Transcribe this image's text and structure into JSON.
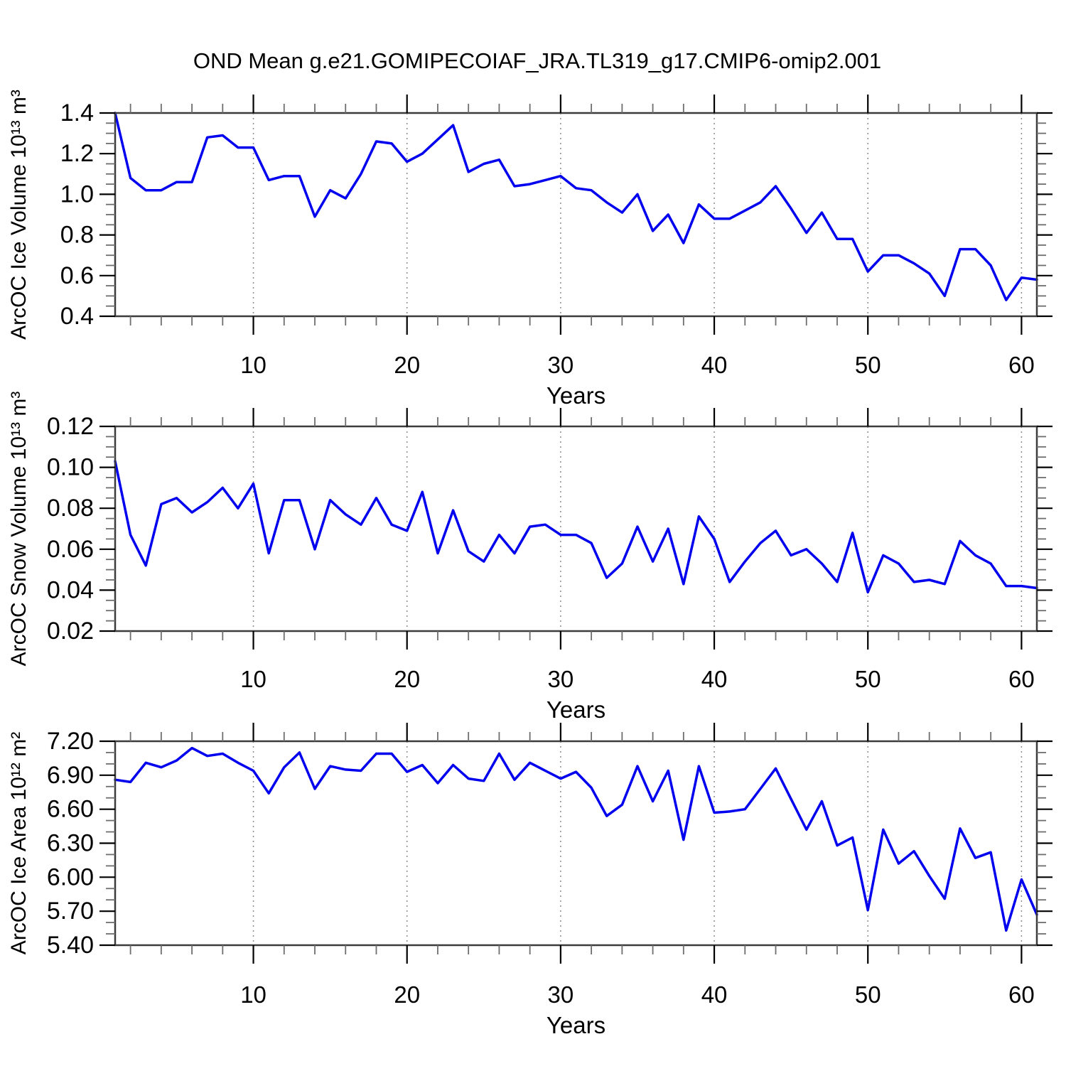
{
  "title": "OND Mean g.e21.GOMIPECOIAF_JRA.TL319_g17.CMIP6-omip2.001",
  "chart_style": {
    "line_color": "#0000ee",
    "frame_color": "#3c3c3c",
    "tick_color": "#000000",
    "minor_tick_color": "#6e6e6e",
    "grid_color": "#8c8c8c",
    "text_color": "#000000",
    "background": "#ffffff"
  },
  "chart_data": [
    {
      "type": "line",
      "title": "",
      "ylabel": "ArcOC Ice Volume 10¹³ m³",
      "xlabel": "Years",
      "x_start": 1,
      "xlim": [
        1,
        61
      ],
      "x_major_ticks": [
        10,
        20,
        30,
        40,
        50,
        60
      ],
      "xtick_labels": [
        "10",
        "20",
        "30",
        "40",
        "50",
        "60"
      ],
      "x_minor_step": 2,
      "ylim": [
        0.4,
        1.4
      ],
      "ytick_values": [
        0.4,
        0.6,
        0.8,
        1.0,
        1.2,
        1.4
      ],
      "ytick_labels": [
        "0.4",
        "0.6",
        "0.8",
        "1.0",
        "1.2",
        "1.4"
      ],
      "y_minor_step": 0.05,
      "grid": "dashed-vertical-at-major-x",
      "legend": "none",
      "values": [
        1.4,
        1.08,
        1.02,
        1.02,
        1.06,
        1.06,
        1.28,
        1.29,
        1.23,
        1.23,
        1.07,
        1.09,
        1.09,
        0.89,
        1.02,
        0.98,
        1.1,
        1.26,
        1.25,
        1.16,
        1.2,
        1.27,
        1.34,
        1.11,
        1.15,
        1.17,
        1.04,
        1.05,
        1.07,
        1.09,
        1.03,
        1.02,
        0.96,
        0.91,
        1.0,
        0.82,
        0.9,
        0.76,
        0.95,
        0.88,
        0.88,
        0.92,
        0.96,
        1.04,
        0.93,
        0.81,
        0.91,
        0.78,
        0.78,
        0.62,
        0.7,
        0.7,
        0.66,
        0.61,
        0.5,
        0.73,
        0.73,
        0.65,
        0.48,
        0.59,
        0.58
      ]
    },
    {
      "type": "line",
      "title": "",
      "ylabel": "ArcOC Snow Volume 10¹³ m³",
      "xlabel": "Years",
      "x_start": 1,
      "xlim": [
        1,
        61
      ],
      "x_major_ticks": [
        10,
        20,
        30,
        40,
        50,
        60
      ],
      "xtick_labels": [
        "10",
        "20",
        "30",
        "40",
        "50",
        "60"
      ],
      "x_minor_step": 2,
      "ylim": [
        0.02,
        0.12
      ],
      "ytick_values": [
        0.02,
        0.04,
        0.06,
        0.08,
        0.1,
        0.12
      ],
      "ytick_labels": [
        "0.02",
        "0.04",
        "0.06",
        "0.08",
        "0.10",
        "0.12"
      ],
      "y_minor_step": 0.005,
      "grid": "dashed-vertical-at-major-x",
      "legend": "none",
      "values": [
        0.103,
        0.067,
        0.052,
        0.082,
        0.085,
        0.078,
        0.083,
        0.09,
        0.08,
        0.092,
        0.058,
        0.084,
        0.084,
        0.06,
        0.084,
        0.077,
        0.072,
        0.085,
        0.072,
        0.069,
        0.088,
        0.058,
        0.079,
        0.059,
        0.054,
        0.067,
        0.058,
        0.071,
        0.072,
        0.067,
        0.067,
        0.063,
        0.046,
        0.053,
        0.071,
        0.054,
        0.07,
        0.043,
        0.076,
        0.065,
        0.044,
        0.054,
        0.063,
        0.069,
        0.057,
        0.06,
        0.053,
        0.044,
        0.068,
        0.039,
        0.057,
        0.053,
        0.044,
        0.045,
        0.043,
        0.064,
        0.057,
        0.053,
        0.042,
        0.042,
        0.041
      ]
    },
    {
      "type": "line",
      "title": "",
      "ylabel": "ArcOC Ice Area 10¹² m²",
      "xlabel": "Years",
      "x_start": 1,
      "xlim": [
        1,
        61
      ],
      "x_major_ticks": [
        10,
        20,
        30,
        40,
        50,
        60
      ],
      "xtick_labels": [
        "10",
        "20",
        "30",
        "40",
        "50",
        "60"
      ],
      "x_minor_step": 2,
      "ylim": [
        5.4,
        7.2
      ],
      "ytick_values": [
        5.4,
        5.7,
        6.0,
        6.3,
        6.6,
        6.9,
        7.2
      ],
      "ytick_labels": [
        "5.40",
        "5.70",
        "6.00",
        "6.30",
        "6.60",
        "6.90",
        "7.20"
      ],
      "y_minor_step": 0.1,
      "grid": "dashed-vertical-at-major-x",
      "legend": "none",
      "values": [
        6.86,
        6.84,
        7.01,
        6.97,
        7.03,
        7.14,
        7.07,
        7.09,
        7.01,
        6.94,
        6.74,
        6.97,
        7.1,
        6.78,
        6.98,
        6.95,
        6.94,
        7.09,
        7.09,
        6.93,
        6.99,
        6.83,
        6.99,
        6.87,
        6.85,
        7.09,
        6.86,
        7.01,
        6.94,
        6.87,
        6.93,
        6.79,
        6.54,
        6.64,
        6.98,
        6.67,
        6.94,
        6.33,
        6.98,
        6.57,
        6.58,
        6.6,
        6.78,
        6.96,
        6.69,
        6.42,
        6.67,
        6.28,
        6.35,
        5.71,
        6.42,
        6.12,
        6.23,
        6.01,
        5.81,
        6.43,
        6.17,
        6.22,
        5.53,
        5.98,
        5.67
      ]
    }
  ]
}
